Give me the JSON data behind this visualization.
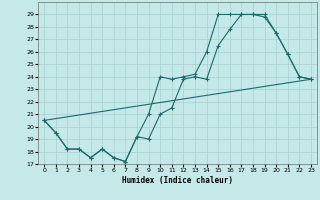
{
  "title": "",
  "xlabel": "Humidex (Indice chaleur)",
  "background_color": "#c5e8e8",
  "grid_color": "#a8d0d0",
  "line_color": "#1a6b6b",
  "xlim": [
    -0.5,
    23.5
  ],
  "ylim": [
    17,
    30
  ],
  "yticks": [
    17,
    18,
    19,
    20,
    21,
    22,
    23,
    24,
    25,
    26,
    27,
    28,
    29
  ],
  "xticks": [
    0,
    1,
    2,
    3,
    4,
    5,
    6,
    7,
    8,
    9,
    10,
    11,
    12,
    13,
    14,
    15,
    16,
    17,
    18,
    19,
    20,
    21,
    22,
    23
  ],
  "line1_x": [
    0,
    1,
    2,
    3,
    4,
    5,
    6,
    7,
    8,
    9,
    10,
    11,
    12,
    13,
    14,
    15,
    16,
    17,
    18,
    19,
    20,
    21,
    22,
    23
  ],
  "line1_y": [
    20.5,
    19.5,
    18.2,
    18.2,
    17.5,
    18.2,
    17.5,
    17.2,
    19.2,
    19.0,
    21.0,
    21.5,
    23.8,
    24.0,
    23.8,
    26.5,
    27.8,
    29.0,
    29.0,
    29.0,
    27.5,
    25.8,
    24.0,
    23.8
  ],
  "line2_x": [
    0,
    1,
    2,
    3,
    4,
    5,
    6,
    7,
    8,
    9,
    10,
    11,
    12,
    13,
    14,
    15,
    16,
    17,
    18,
    19,
    20,
    21,
    22,
    23
  ],
  "line2_y": [
    20.5,
    19.5,
    18.2,
    18.2,
    17.5,
    18.2,
    17.5,
    17.2,
    19.2,
    21.0,
    24.0,
    23.8,
    24.0,
    24.2,
    26.0,
    29.0,
    29.0,
    29.0,
    29.0,
    28.8,
    27.5,
    25.8,
    24.0,
    23.8
  ],
  "line3_x": [
    0,
    23
  ],
  "line3_y": [
    20.5,
    23.8
  ]
}
